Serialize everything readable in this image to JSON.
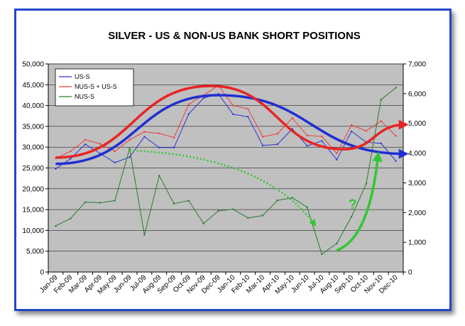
{
  "chart_data": {
    "type": "line",
    "title": "SILVER - US & NON-US BANK SHORT POSITIONS",
    "categories": [
      "Jan-09",
      "Feb-09",
      "Mar-09",
      "Apr-09",
      "May-09",
      "Jun-09",
      "Jul-09",
      "Aug-09",
      "Sep-09",
      "Oct-09",
      "Nov-09",
      "Dec-09",
      "Jan-10",
      "Feb-10",
      "Mar-10",
      "Apr-10",
      "May-10",
      "Jun-10",
      "Jul-10",
      "Aug-10",
      "Sep-10",
      "Oct-10",
      "Nov-10",
      "Dec-10"
    ],
    "ylim_left": [
      0,
      50000
    ],
    "yticks_left": [
      "0",
      "5,000",
      "10,000",
      "15,000",
      "20,000",
      "25,000",
      "30,000",
      "35,000",
      "40,000",
      "45,000",
      "50,000"
    ],
    "ylim_right": [
      0,
      7000
    ],
    "yticks_right": [
      "0",
      "1,000",
      "2,000",
      "3,000",
      "4,000",
      "5,000",
      "6,000",
      "7,000"
    ],
    "legend_placement": "top-left",
    "grid": true,
    "background_color": "#c0c0c0",
    "series": [
      {
        "name": "US-S",
        "axis": "left",
        "color": "#2b35d6",
        "values": [
          24800,
          27200,
          30700,
          28500,
          26300,
          27600,
          32500,
          29900,
          29900,
          38000,
          41800,
          42800,
          37900,
          37300,
          30400,
          30700,
          34400,
          30300,
          31500,
          27000,
          33800,
          31200,
          30900,
          26700
        ]
      },
      {
        "name": "NUS-S + US-S",
        "axis": "left",
        "color": "#ee3c3c",
        "values": [
          27300,
          29000,
          31800,
          30800,
          29000,
          31800,
          33700,
          33300,
          32300,
          40300,
          42500,
          44800,
          40000,
          39200,
          32500,
          33200,
          37000,
          32800,
          32600,
          28500,
          35300,
          33900,
          36300,
          32700
        ]
      },
      {
        "name": "NUS-S",
        "axis": "right",
        "color": "#2c7a2c",
        "values": [
          1550,
          1800,
          2350,
          2330,
          2400,
          4150,
          1250,
          3240,
          2300,
          2400,
          1630,
          2060,
          2110,
          1820,
          1900,
          2410,
          2500,
          2180,
          600,
          960,
          1860,
          2970,
          5800,
          6200
        ]
      }
    ],
    "annotations": {
      "question_mark": "?",
      "trend_arrow_blue": "#1f2fd1",
      "trend_arrow_red": "#e82424",
      "dotted_arrow_green": "#2ec82e",
      "solid_arrow_green": "#2ec82e"
    }
  }
}
